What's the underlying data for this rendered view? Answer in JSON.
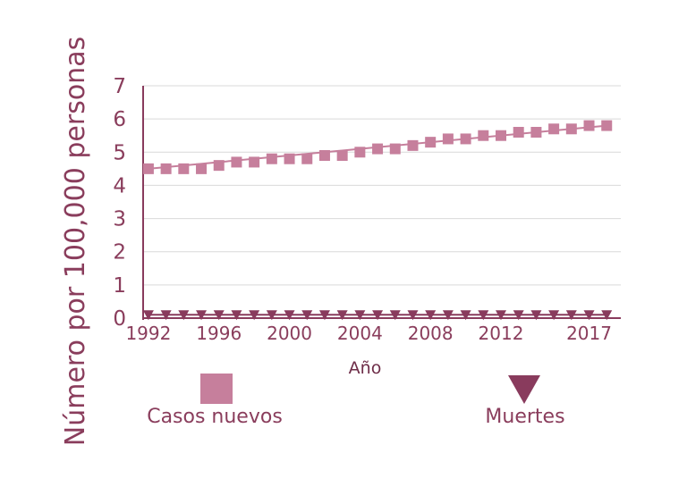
{
  "chart_data": {
    "type": "line",
    "title": "",
    "xlabel": "Año",
    "ylabel": "Número por 100,000  personas",
    "ylim": [
      0,
      7
    ],
    "yticks": [
      "0",
      "1",
      "2",
      "3",
      "4",
      "5",
      "6",
      "7"
    ],
    "xlim": [
      1991.7,
      2018.8
    ],
    "xticks": [
      "1992",
      "1996",
      "2000",
      "2004",
      "2008",
      "2012",
      "2017"
    ],
    "grid": "horizontal",
    "legend_position": "bottom",
    "colors": {
      "new_cases": "#c67f9c",
      "deaths": "#893b5d",
      "axis": "#893b5d",
      "grid": "#d9d9d9"
    },
    "x": [
      1992,
      1993,
      1994,
      1995,
      1996,
      1997,
      1998,
      1999,
      2000,
      2001,
      2002,
      2003,
      2004,
      2005,
      2006,
      2007,
      2008,
      2009,
      2010,
      2011,
      2012,
      2013,
      2014,
      2015,
      2016,
      2017,
      2018
    ],
    "series": [
      {
        "name": "Casos nuevos",
        "marker": "square",
        "values": [
          4.5,
          4.5,
          4.5,
          4.5,
          4.6,
          4.7,
          4.7,
          4.8,
          4.8,
          4.8,
          4.9,
          4.9,
          5.0,
          5.1,
          5.1,
          5.2,
          5.3,
          5.4,
          5.4,
          5.5,
          5.5,
          5.6,
          5.6,
          5.7,
          5.7,
          5.8,
          5.8
        ],
        "trend": [
          4.5,
          5.8
        ]
      },
      {
        "name": "Muertes",
        "marker": "triangle-down",
        "values": [
          0.1,
          0.1,
          0.1,
          0.1,
          0.1,
          0.1,
          0.1,
          0.1,
          0.1,
          0.1,
          0.1,
          0.1,
          0.1,
          0.1,
          0.1,
          0.1,
          0.1,
          0.1,
          0.1,
          0.1,
          0.1,
          0.1,
          0.1,
          0.1,
          0.1,
          0.1,
          0.1
        ],
        "trend": [
          0.1,
          0.1
        ]
      }
    ]
  }
}
